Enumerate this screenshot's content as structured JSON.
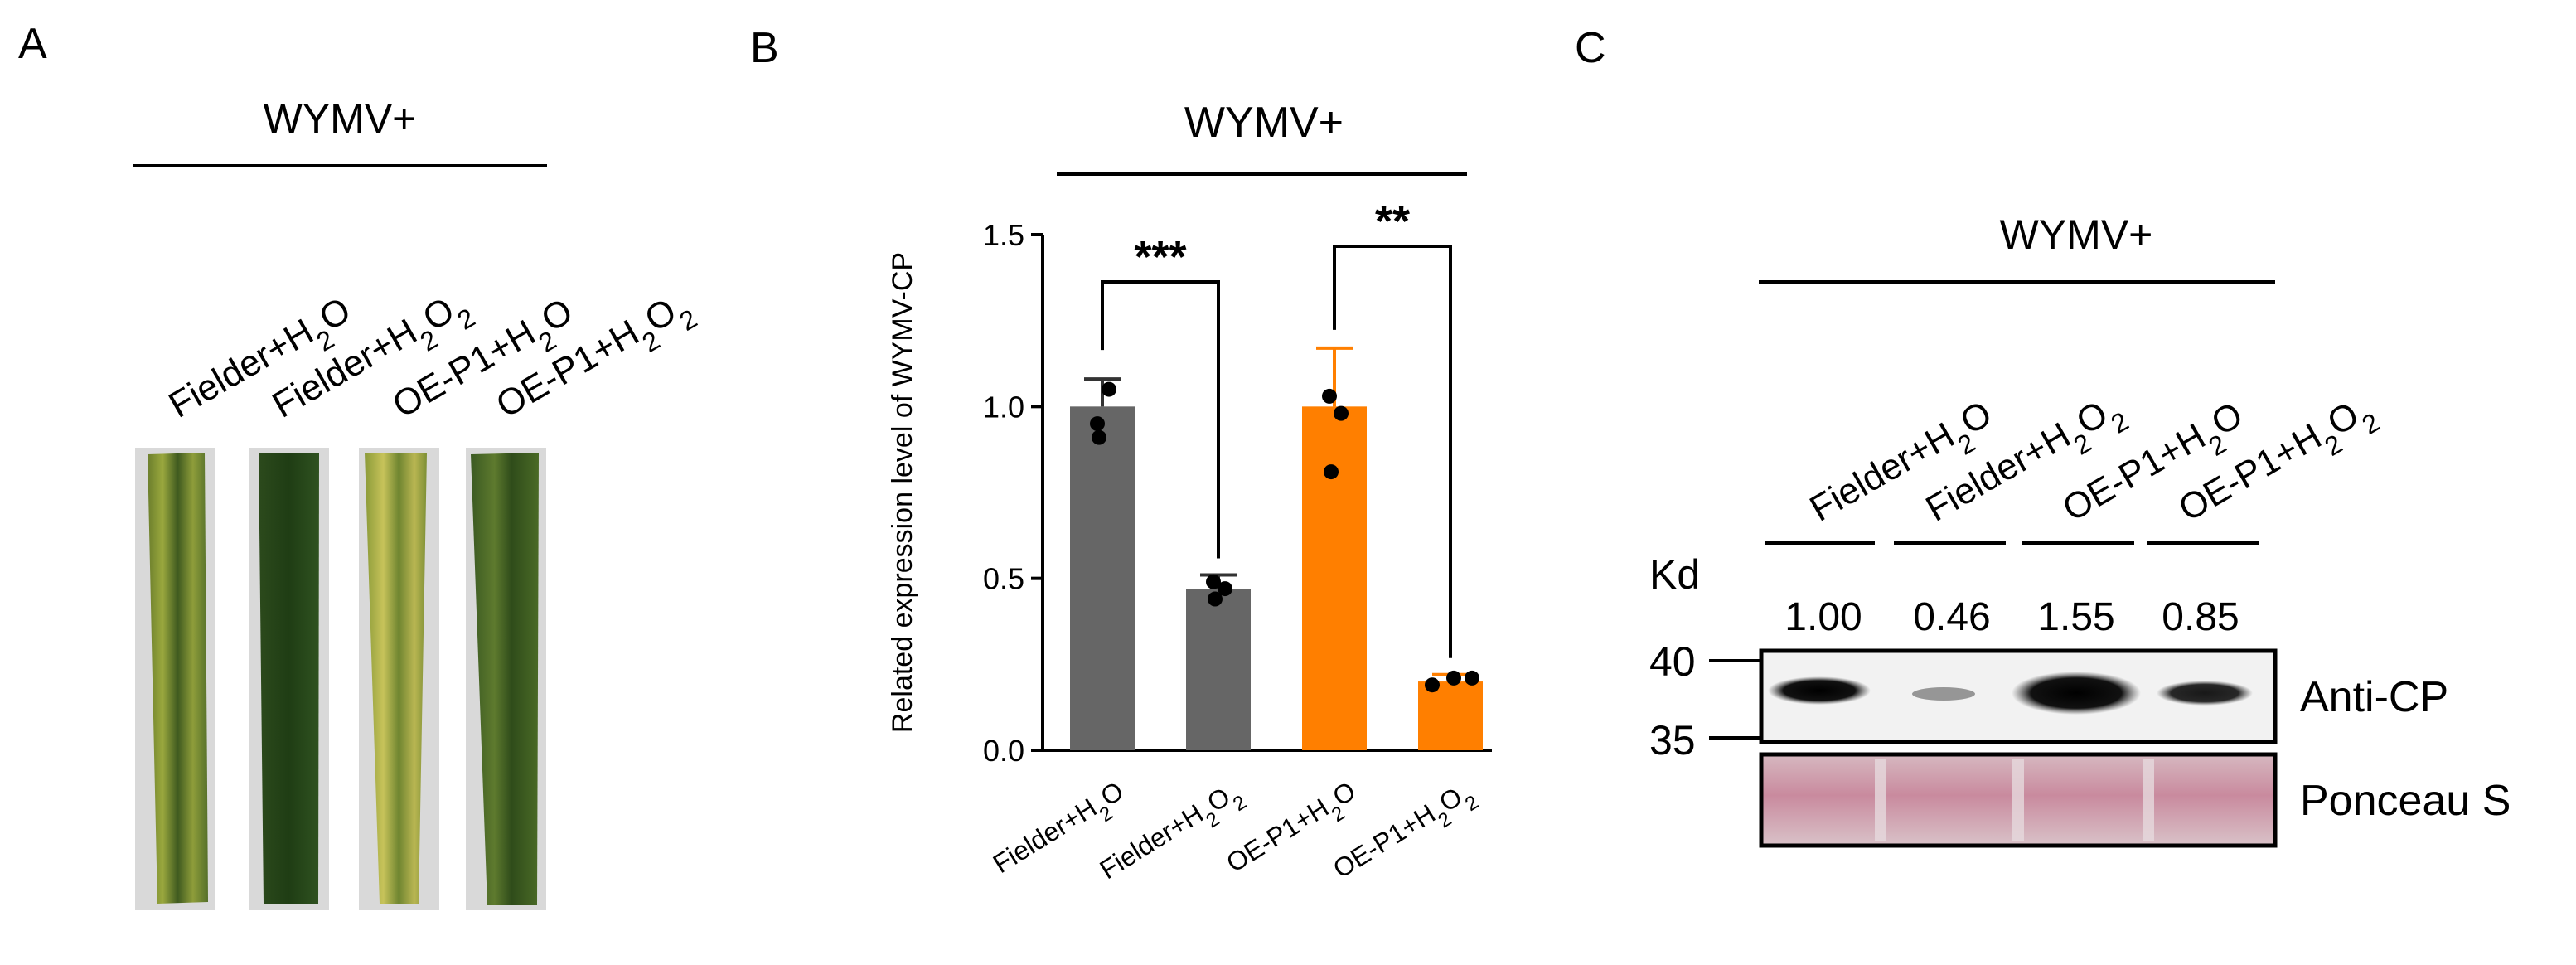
{
  "panels": {
    "a": {
      "letter": "A",
      "header": "WYMV+",
      "lanes": [
        {
          "main": "Fielder+H",
          "sub1": "2",
          "mid": "O",
          "sub2": ""
        },
        {
          "main": "Fielder+H",
          "sub1": "2",
          "mid": "O",
          "sub2": "2"
        },
        {
          "main": "OE-P1+H",
          "sub1": "2",
          "mid": "O",
          "sub2": ""
        },
        {
          "main": "OE-P1+H",
          "sub1": "2",
          "mid": "O",
          "sub2": "2"
        }
      ]
    },
    "b": {
      "letter": "B",
      "header": "WYMV+"
    },
    "c": {
      "letter": "C",
      "header": "WYMV+",
      "lanes": [
        {
          "main": "Fielder+H",
          "sub1": "2",
          "mid": "O",
          "sub2": ""
        },
        {
          "main": "Fielder+H",
          "sub1": "2",
          "mid": "O",
          "sub2": "2"
        },
        {
          "main": "OE-P1+H",
          "sub1": "2",
          "mid": "O",
          "sub2": ""
        },
        {
          "main": "OE-P1+H",
          "sub1": "2",
          "mid": "O",
          "sub2": "2"
        }
      ],
      "kd_label": "Kd",
      "mw_markers": [
        "40",
        "35"
      ],
      "quant_values": [
        "1.00",
        "0.46",
        "1.55",
        "0.85"
      ],
      "blot_labels": {
        "top": "Anti-CP",
        "bottom": "Ponceau S"
      }
    }
  },
  "chart_data": {
    "type": "bar",
    "title": "WYMV+",
    "ylabel": "Related expression level of WYMV-CP",
    "xlabel": "",
    "ylim": [
      0,
      1.5
    ],
    "yticks": [
      "0.0",
      "0.5",
      "1.0",
      "1.5"
    ],
    "categories": [
      {
        "main": "Fielder+H",
        "sub1": "2",
        "mid": "O",
        "sub2": ""
      },
      {
        "main": "Fielder+H",
        "sub1": "2",
        "mid": "O",
        "sub2": "2"
      },
      {
        "main": "OE-P1+H",
        "sub1": "2",
        "mid": "O",
        "sub2": ""
      },
      {
        "main": "OE-P1+H",
        "sub1": "2",
        "mid": "O",
        "sub2": "2"
      }
    ],
    "values": [
      1.0,
      0.47,
      1.0,
      0.2
    ],
    "errors": [
      0.08,
      0.04,
      0.17,
      0.02
    ],
    "colors": [
      "#666666",
      "#666666",
      "#ff7f00",
      "#ff7f00"
    ],
    "points": [
      [
        0.95,
        1.05,
        0.91
      ],
      [
        0.49,
        0.47,
        0.44
      ],
      [
        1.03,
        0.98,
        0.81
      ],
      [
        0.19,
        0.21,
        0.21
      ]
    ],
    "significance": [
      {
        "between": [
          0,
          1
        ],
        "label": "***"
      },
      {
        "between": [
          2,
          3
        ],
        "label": "**"
      }
    ]
  }
}
